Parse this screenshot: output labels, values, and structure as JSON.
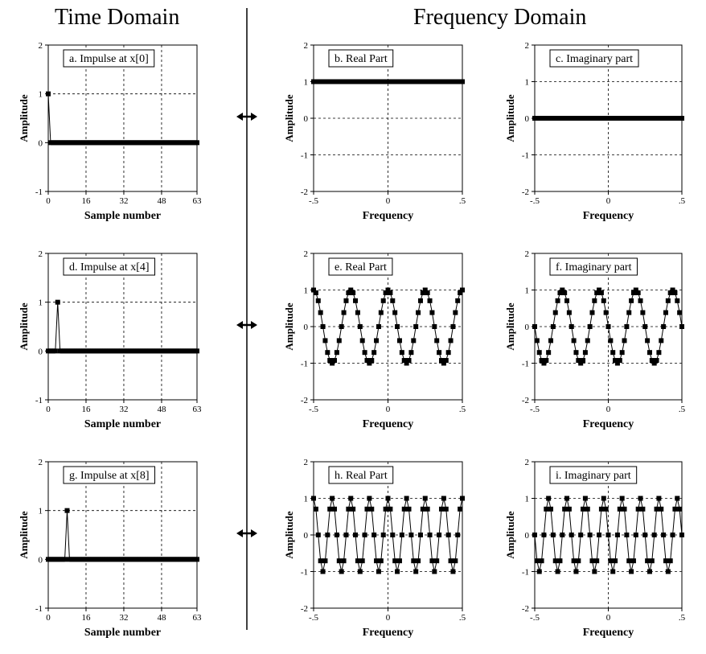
{
  "headers": {
    "time": "Time Domain",
    "frequency": "Frequency Domain"
  },
  "chart_data": [
    {
      "id": "a",
      "type": "scatter",
      "title": "a.  Impulse at x[0]",
      "xlabel": "Sample number",
      "ylabel": "Amplitude",
      "xlim": [
        0,
        63
      ],
      "ylim": [
        -1,
        2
      ],
      "xticks": [
        0,
        16,
        32,
        48,
        63
      ],
      "yticks": [
        -1,
        0,
        1,
        2
      ],
      "signal": "impulse",
      "impulse_index": 0
    },
    {
      "id": "b",
      "type": "scatter",
      "title": "b.  Real Part",
      "xlabel": "Frequency",
      "ylabel": "Amplitude",
      "xlim": [
        -0.5,
        0.5
      ],
      "ylim": [
        -2,
        2
      ],
      "xticks": [
        -0.5,
        0,
        0.5
      ],
      "yticks": [
        -2,
        -1,
        0,
        1,
        2
      ],
      "signal": "cos",
      "shift": 0
    },
    {
      "id": "c",
      "type": "scatter",
      "title": "c.  Imaginary part",
      "xlabel": "Frequency",
      "ylabel": "Amplitude",
      "xlim": [
        -0.5,
        0.5
      ],
      "ylim": [
        -2,
        2
      ],
      "xticks": [
        -0.5,
        0,
        0.5
      ],
      "yticks": [
        -2,
        -1,
        0,
        1,
        2
      ],
      "signal": "sin",
      "shift": 0
    },
    {
      "id": "d",
      "type": "scatter",
      "title": "d.  Impulse at x[4]",
      "xlabel": "Sample number",
      "ylabel": "Amplitude",
      "xlim": [
        0,
        63
      ],
      "ylim": [
        -1,
        2
      ],
      "xticks": [
        0,
        16,
        32,
        48,
        63
      ],
      "yticks": [
        -1,
        0,
        1,
        2
      ],
      "signal": "impulse",
      "impulse_index": 4
    },
    {
      "id": "e",
      "type": "line",
      "title": "e.  Real Part",
      "xlabel": "Frequency",
      "ylabel": "Amplitude",
      "xlim": [
        -0.5,
        0.5
      ],
      "ylim": [
        -2,
        2
      ],
      "xticks": [
        -0.5,
        0,
        0.5
      ],
      "yticks": [
        -2,
        -1,
        0,
        1,
        2
      ],
      "signal": "cos",
      "shift": 4
    },
    {
      "id": "f",
      "type": "line",
      "title": "f.  Imaginary part",
      "xlabel": "Frequency",
      "ylabel": "Amplitude",
      "xlim": [
        -0.5,
        0.5
      ],
      "ylim": [
        -2,
        2
      ],
      "xticks": [
        -0.5,
        0,
        0.5
      ],
      "yticks": [
        -2,
        -1,
        0,
        1,
        2
      ],
      "signal": "sin",
      "shift": 4
    },
    {
      "id": "g",
      "type": "scatter",
      "title": "g.  Impulse at x[8]",
      "xlabel": "Sample number",
      "ylabel": "Amplitude",
      "xlim": [
        0,
        63
      ],
      "ylim": [
        -1,
        2
      ],
      "xticks": [
        0,
        16,
        32,
        48,
        63
      ],
      "yticks": [
        -1,
        0,
        1,
        2
      ],
      "signal": "impulse",
      "impulse_index": 8
    },
    {
      "id": "h",
      "type": "line",
      "title": "h.  Real Part",
      "xlabel": "Frequency",
      "ylabel": "Amplitude",
      "xlim": [
        -0.5,
        0.5
      ],
      "ylim": [
        -2,
        2
      ],
      "xticks": [
        -0.5,
        0,
        0.5
      ],
      "yticks": [
        -2,
        -1,
        0,
        1,
        2
      ],
      "signal": "cos",
      "shift": 8
    },
    {
      "id": "i",
      "type": "line",
      "title": "i.  Imaginary part",
      "xlabel": "Frequency",
      "ylabel": "Amplitude",
      "xlim": [
        -0.5,
        0.5
      ],
      "ylim": [
        -2,
        2
      ],
      "xticks": [
        -0.5,
        0,
        0.5
      ],
      "yticks": [
        -2,
        -1,
        0,
        1,
        2
      ],
      "signal": "sin",
      "shift": 8
    }
  ]
}
